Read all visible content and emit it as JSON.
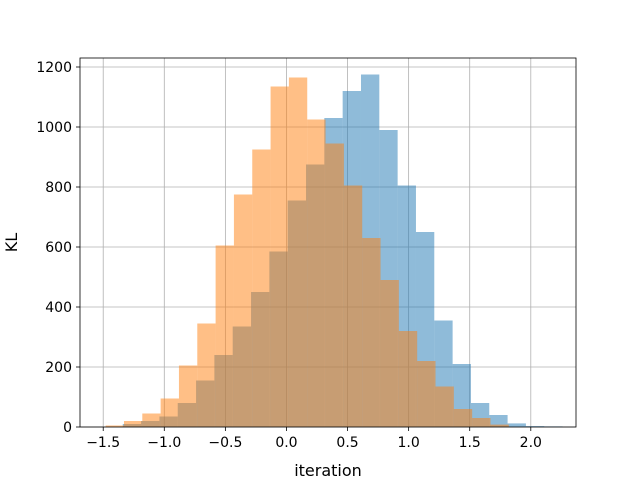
{
  "chart_data": {
    "type": "bar",
    "subtype": "overlapping-histogram",
    "title": "",
    "xlabel": "iteration",
    "ylabel": "KL",
    "xlim": [
      -1.69,
      2.37
    ],
    "ylim": [
      0,
      1230
    ],
    "grid": true,
    "x_ticks": [
      -1.5,
      -1.0,
      -0.5,
      0.0,
      0.5,
      1.0,
      1.5,
      2.0
    ],
    "x_tick_labels": [
      "−1.5",
      "−1.0",
      "−0.5",
      "0.0",
      "0.5",
      "1.0",
      "1.5",
      "2.0"
    ],
    "y_ticks": [
      0,
      200,
      400,
      600,
      800,
      1000,
      1200
    ],
    "y_tick_labels": [
      "0",
      "200",
      "400",
      "600",
      "800",
      "1000",
      "1200"
    ],
    "series": [
      {
        "color": "#1f77b4",
        "opacity": 0.5,
        "bin_edges": [
          -1.34,
          -1.19,
          -1.04,
          -0.89,
          -0.74,
          -0.59,
          -0.44,
          -0.29,
          -0.14,
          0.01,
          0.16,
          0.31,
          0.46,
          0.61,
          0.76,
          0.91,
          1.06,
          1.21,
          1.36,
          1.51,
          1.66,
          1.81,
          1.96,
          2.11,
          2.26
        ],
        "counts": [
          10,
          20,
          35,
          80,
          155,
          240,
          335,
          450,
          585,
          755,
          875,
          1030,
          1120,
          1175,
          990,
          805,
          650,
          355,
          210,
          80,
          40,
          12,
          3,
          2
        ]
      },
      {
        "color": "#ff7f0e",
        "opacity": 0.5,
        "bin_edges": [
          -1.48,
          -1.33,
          -1.18,
          -1.03,
          -0.88,
          -0.73,
          -0.58,
          -0.43,
          -0.28,
          -0.13,
          0.02,
          0.17,
          0.32,
          0.47,
          0.62,
          0.77,
          0.92,
          1.07,
          1.22,
          1.37,
          1.52,
          1.67,
          1.82
        ],
        "counts": [
          5,
          20,
          45,
          95,
          205,
          345,
          605,
          775,
          925,
          1135,
          1165,
          1025,
          945,
          805,
          630,
          490,
          320,
          220,
          135,
          60,
          30,
          8
        ]
      }
    ]
  }
}
